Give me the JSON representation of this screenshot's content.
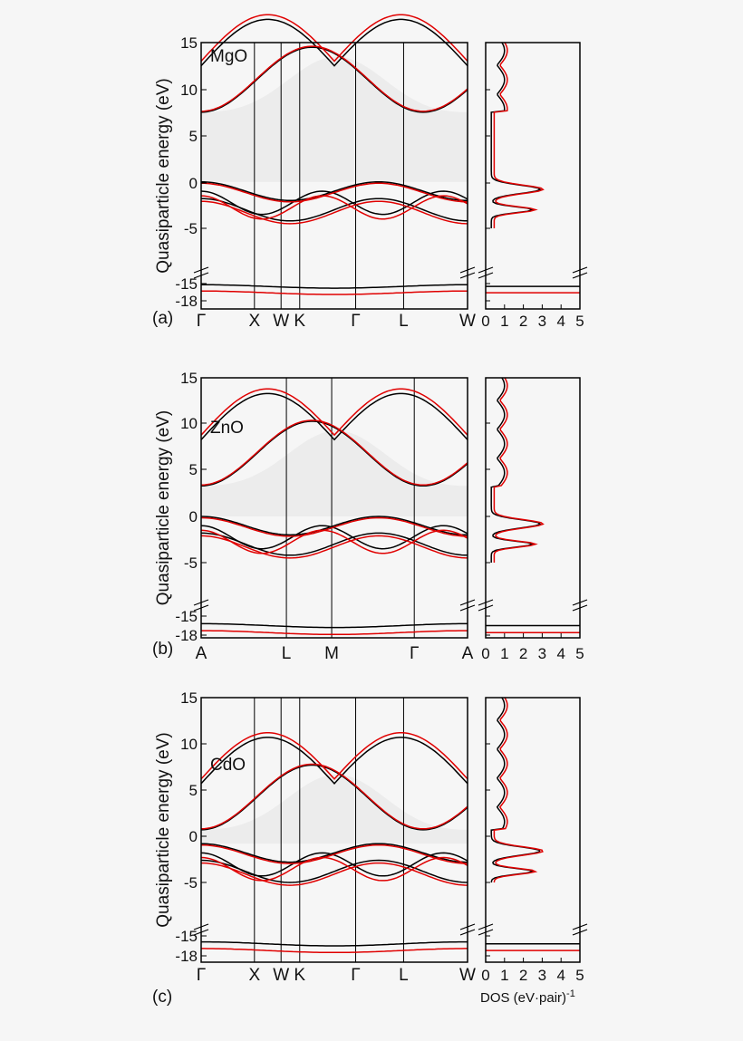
{
  "chart_data": [
    {
      "type": "line",
      "panel_label": "(a)",
      "material": "MgO",
      "ylabel": "Quasiparticle energy (eV)",
      "band_ticks": [
        "15",
        "10",
        "5",
        "0",
        "-5",
        "-15",
        "-18"
      ],
      "kpoints": [
        {
          "label": "Γ",
          "pos": 0.0
        },
        {
          "label": "X",
          "pos": 0.2
        },
        {
          "label": "W",
          "pos": 0.3
        },
        {
          "label": "K",
          "pos": 0.37
        },
        {
          "label": "Γ",
          "pos": 0.58
        },
        {
          "label": "L",
          "pos": 0.76
        },
        {
          "label": "W",
          "pos": 1.0
        }
      ],
      "dos_xticks": [
        "0",
        "1",
        "2",
        "3",
        "4",
        "5"
      ],
      "conduction_band_min": 7.5,
      "valence_band_max": 0,
      "series": [
        {
          "color": "#000000",
          "semicore": -15.5
        },
        {
          "color": "#e00000",
          "semicore": -16.6
        }
      ]
    },
    {
      "type": "line",
      "panel_label": "(b)",
      "material": "ZnO",
      "ylabel": "Quasiparticle energy (eV)",
      "band_ticks": [
        "15",
        "10",
        "5",
        "0",
        "-5",
        "-15",
        "-18"
      ],
      "kpoints": [
        {
          "label": "A",
          "pos": 0.0
        },
        {
          "label": "L",
          "pos": 0.32
        },
        {
          "label": "M",
          "pos": 0.49
        },
        {
          "label": "Γ",
          "pos": 0.8
        },
        {
          "label": "A",
          "pos": 1.0
        }
      ],
      "dos_xticks": [
        "0",
        "1",
        "2",
        "3",
        "4",
        "5"
      ],
      "conduction_band_min": 3.3,
      "valence_band_max": 0,
      "series": [
        {
          "color": "#000000",
          "semicore": -16.5
        },
        {
          "color": "#e00000",
          "semicore": -17.6
        }
      ]
    },
    {
      "type": "line",
      "panel_label": "(c)",
      "material": "CdO",
      "ylabel": "Quasiparticle energy (eV)",
      "band_ticks": [
        "15",
        "10",
        "5",
        "0",
        "-5",
        "-15",
        "-18"
      ],
      "kpoints": [
        {
          "label": "Γ",
          "pos": 0.0
        },
        {
          "label": "X",
          "pos": 0.2
        },
        {
          "label": "W",
          "pos": 0.3
        },
        {
          "label": "K",
          "pos": 0.37
        },
        {
          "label": "Γ",
          "pos": 0.58
        },
        {
          "label": "L",
          "pos": 0.76
        },
        {
          "label": "W",
          "pos": 1.0
        }
      ],
      "dos_xticks": [
        "0",
        "1",
        "2",
        "3",
        "4",
        "5"
      ],
      "conduction_band_min": 0.7,
      "valence_band_max": -0.8,
      "series": [
        {
          "color": "#000000",
          "semicore": -16.2
        },
        {
          "color": "#e00000",
          "semicore": -17.2
        }
      ]
    }
  ],
  "dos_xlabel": "DOS (eV·pair)",
  "dos_xlabel_exp": "-1"
}
